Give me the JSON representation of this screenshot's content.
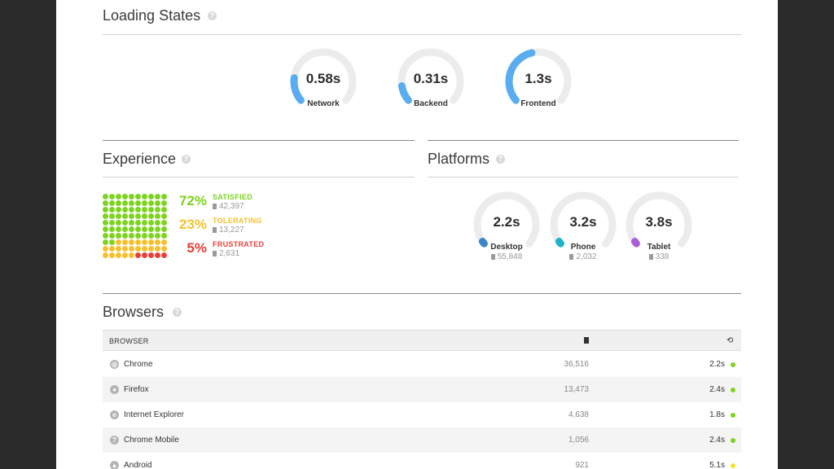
{
  "colors": {
    "satisfied": "#7ed321",
    "tolerating": "#f5c12e",
    "frustrated": "#e8413a",
    "gauge_blue": "#5aacf0",
    "desktop": "#3a86c8",
    "phone": "#1bb4c8",
    "tablet": "#a95fd4",
    "track": "#ececec"
  },
  "loading": {
    "title": "Loading States",
    "help_icon": "question-icon",
    "gauges": [
      {
        "label": "Network",
        "value": "0.58s",
        "fill": 0.18,
        "color": "#5aacf0"
      },
      {
        "label": "Backend",
        "value": "0.31s",
        "fill": 0.12,
        "color": "#5aacf0"
      },
      {
        "label": "Frontend",
        "value": "1.3s",
        "fill": 0.45,
        "color": "#5aacf0"
      }
    ]
  },
  "experience": {
    "title": "Experience",
    "rows": [
      {
        "pct": "72%",
        "name": "SATISFIED",
        "count": "42,397",
        "color": "#7ed321"
      },
      {
        "pct": "23%",
        "name": "TOLERATING",
        "count": "13,227",
        "color": "#f5c12e"
      },
      {
        "pct": "5%",
        "name": "FRUSTRATED",
        "count": "2,631",
        "color": "#e8413a"
      }
    ],
    "dots": {
      "total": 100,
      "satisfied": 72,
      "tolerating": 23,
      "frustrated": 5
    }
  },
  "platforms": {
    "title": "Platforms",
    "gauges": [
      {
        "label": "Desktop",
        "value": "2.2s",
        "count": "55,848",
        "fill": 0.02,
        "color": "#3a86c8"
      },
      {
        "label": "Phone",
        "value": "3.2s",
        "count": "2,032",
        "fill": 0.02,
        "color": "#1bb4c8"
      },
      {
        "label": "Tablet",
        "value": "3.8s",
        "count": "338",
        "fill": 0.02,
        "color": "#a95fd4"
      }
    ]
  },
  "browsers": {
    "title": "Browsers",
    "header": {
      "browser": "BROWSER",
      "pages_icon": "document-icon",
      "time_icon": "history-icon"
    },
    "rows": [
      {
        "name": "Chrome",
        "icon": "chrome-icon",
        "glyph": "◎",
        "count": "36,516",
        "time": "2.2s",
        "status": "#7ed321"
      },
      {
        "name": "Firefox",
        "icon": "firefox-icon",
        "glyph": "●",
        "count": "13,473",
        "time": "2.4s",
        "status": "#7ed321"
      },
      {
        "name": "Internet Explorer",
        "icon": "internet-explorer-icon",
        "glyph": "e",
        "count": "4,638",
        "time": "1.8s",
        "status": "#7ed321"
      },
      {
        "name": "Chrome Mobile",
        "icon": "unknown-browser-icon",
        "glyph": "?",
        "count": "1,056",
        "time": "2.4s",
        "status": "#7ed321"
      },
      {
        "name": "Android",
        "icon": "android-icon",
        "glyph": "▲",
        "count": "921",
        "time": "5.1s",
        "status": "#f5e12e"
      }
    ]
  }
}
